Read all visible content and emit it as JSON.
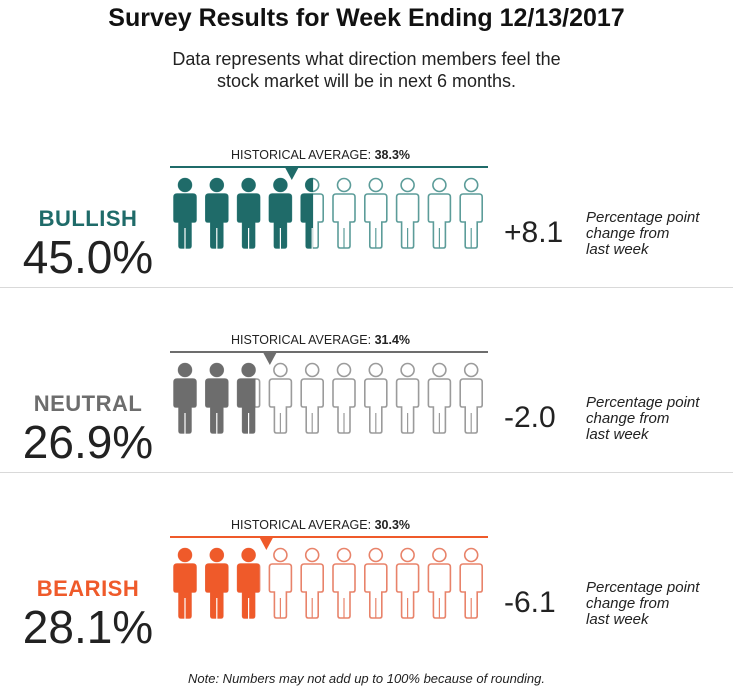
{
  "title": "Survey Results for Week Ending 12/13/2017",
  "subtitle_line1": "Data represents what direction members feel the",
  "subtitle_line2": "stock market will be in next 6 months.",
  "footnote": "Note: Numbers may not add up to 100% because of rounding.",
  "hist_prefix": "HISTORICAL AVERAGE: ",
  "chart_data": {
    "type": "pictogram",
    "icons_per_row": 10,
    "categories": [
      "BULLISH",
      "NEUTRAL",
      "BEARISH"
    ],
    "series": [
      {
        "name": "BULLISH",
        "label": "BULLISH",
        "value_text": "45.0%",
        "value": 45.0,
        "historical_average": 38.3,
        "historical_text": "38.3%",
        "change_text": "+8.1",
        "change": 8.1,
        "change_note": [
          "Percentage point",
          "change from",
          "last week"
        ],
        "color": "#1f6b69",
        "outline": "#5c9c99"
      },
      {
        "name": "NEUTRAL",
        "label": "NEUTRAL",
        "value_text": "26.9%",
        "value": 26.9,
        "historical_average": 31.4,
        "historical_text": "31.4%",
        "change_text": "-2.0",
        "change": -2.0,
        "change_note": [
          "Percentage point",
          "change from",
          "last week"
        ],
        "color": "#6d6d6d",
        "outline": "#9b9b9b"
      },
      {
        "name": "BEARISH",
        "label": "BEARISH",
        "value_text": "28.1%",
        "value": 28.1,
        "historical_average": 30.3,
        "historical_text": "30.3%",
        "change_text": "-6.1",
        "change": -6.1,
        "change_note": [
          "Percentage point",
          "change from",
          "last week"
        ],
        "color": "#ef5a2a",
        "outline": "#e8836a"
      }
    ]
  }
}
